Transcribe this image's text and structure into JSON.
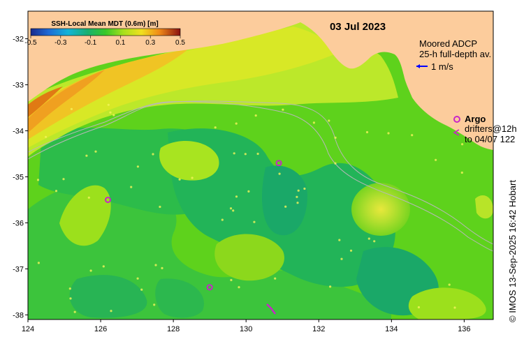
{
  "map": {
    "date": "03 Jul 2023",
    "colorbar": {
      "title": "SSH-Local Mean MDT (0.6m) [m]",
      "ticks": [
        "-0.5",
        "-0.3",
        "-0.1",
        "0.1",
        "0.3",
        "0.5"
      ],
      "range": [
        -0.5,
        0.5
      ]
    },
    "legend": {
      "adcp_title": "Moored ADCP",
      "adcp_subtitle": "25-h full-depth av.",
      "adcp_scale": "1 m/s",
      "argo_label": "Argo",
      "drifters_line1": "drifters@12h",
      "drifters_line2": "to 04/07 122"
    },
    "credit": "© IMOS 13-Sep-2025 16:42 Hobart",
    "axes": {
      "lon_ticks": [
        "124",
        "126",
        "128",
        "130",
        "132",
        "134",
        "136"
      ],
      "lat_ticks": [
        "-32",
        "-33",
        "-34",
        "-35",
        "-36",
        "-37",
        "-38"
      ],
      "lon_range": [
        124,
        136.8
      ],
      "lat_range": [
        -38.1,
        -31.4
      ]
    },
    "argo_floats": [
      {
        "lon": 126.2,
        "lat": -35.5
      },
      {
        "lon": 130.9,
        "lat": -34.7
      },
      {
        "lon": 129.0,
        "lat": -37.4
      }
    ],
    "colors": {
      "land": "#fccc9c",
      "ocean_low": "#1fb35c",
      "ocean_mid": "#5ed21c",
      "ocean_high": "#f0a020",
      "argo": "#c826c8",
      "adcp_arrow": "#0000ff"
    }
  }
}
